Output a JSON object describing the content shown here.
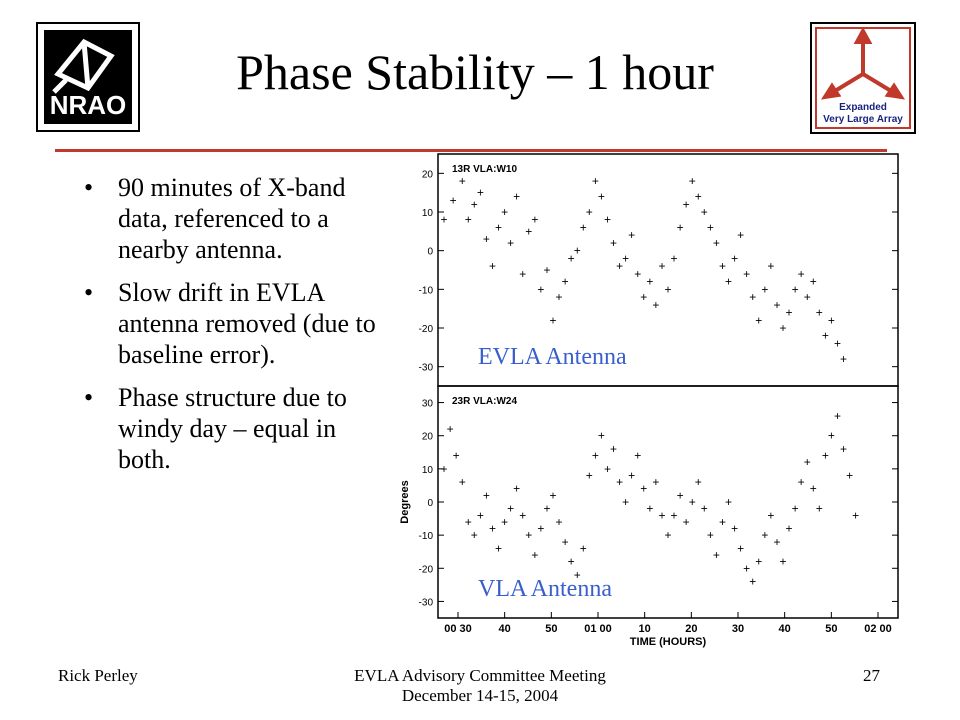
{
  "slide": {
    "title": "Phase Stability – 1 hour",
    "bullets": [
      "90 minutes of X-band data, referenced to a nearby antenna.",
      "Slow drift in EVLA antenna removed (due to baseline error).",
      "Phase structure due to windy day – equal in both."
    ],
    "footer_left": "Rick Perley",
    "footer_center_line1": "EVLA Advisory Committee Meeting",
    "footer_center_line2": "December 14-15, 2004",
    "page_number": "27",
    "accent_color": "#c0392b",
    "label_color": "#3a5fcd"
  },
  "logos": {
    "left_text": "NRAO",
    "right_line1": "Expanded",
    "right_line2": "Very Large Array"
  },
  "chart_data": [
    {
      "type": "scatter",
      "title": "",
      "panel_label": "13R VLA:W10",
      "annotation": "EVLA Antenna",
      "ylabel": "",
      "ylim": [
        -35,
        25
      ],
      "yticks": [
        20,
        10,
        0,
        -10,
        -20,
        -30
      ],
      "xlim": [
        0.48,
        2.0
      ],
      "marker": "+",
      "points": [
        [
          0.5,
          8
        ],
        [
          0.53,
          13
        ],
        [
          0.56,
          18
        ],
        [
          0.58,
          8
        ],
        [
          0.6,
          12
        ],
        [
          0.62,
          15
        ],
        [
          0.64,
          3
        ],
        [
          0.66,
          -4
        ],
        [
          0.68,
          6
        ],
        [
          0.7,
          10
        ],
        [
          0.72,
          2
        ],
        [
          0.74,
          14
        ],
        [
          0.76,
          -6
        ],
        [
          0.78,
          5
        ],
        [
          0.8,
          8
        ],
        [
          0.82,
          -10
        ],
        [
          0.84,
          -5
        ],
        [
          0.86,
          -18
        ],
        [
          0.88,
          -12
        ],
        [
          0.9,
          -8
        ],
        [
          0.92,
          -2
        ],
        [
          0.94,
          0
        ],
        [
          0.96,
          6
        ],
        [
          0.98,
          10
        ],
        [
          1.0,
          18
        ],
        [
          1.02,
          14
        ],
        [
          1.04,
          8
        ],
        [
          1.06,
          2
        ],
        [
          1.08,
          -4
        ],
        [
          1.1,
          -2
        ],
        [
          1.12,
          4
        ],
        [
          1.14,
          -6
        ],
        [
          1.16,
          -12
        ],
        [
          1.18,
          -8
        ],
        [
          1.2,
          -14
        ],
        [
          1.22,
          -4
        ],
        [
          1.24,
          -10
        ],
        [
          1.26,
          -2
        ],
        [
          1.28,
          6
        ],
        [
          1.3,
          12
        ],
        [
          1.32,
          18
        ],
        [
          1.34,
          14
        ],
        [
          1.36,
          10
        ],
        [
          1.38,
          6
        ],
        [
          1.4,
          2
        ],
        [
          1.42,
          -4
        ],
        [
          1.44,
          -8
        ],
        [
          1.46,
          -2
        ],
        [
          1.48,
          4
        ],
        [
          1.5,
          -6
        ],
        [
          1.52,
          -12
        ],
        [
          1.54,
          -18
        ],
        [
          1.56,
          -10
        ],
        [
          1.58,
          -4
        ],
        [
          1.6,
          -14
        ],
        [
          1.62,
          -20
        ],
        [
          1.64,
          -16
        ],
        [
          1.66,
          -10
        ],
        [
          1.68,
          -6
        ],
        [
          1.7,
          -12
        ],
        [
          1.72,
          -8
        ],
        [
          1.74,
          -16
        ],
        [
          1.76,
          -22
        ],
        [
          1.78,
          -18
        ],
        [
          1.8,
          -24
        ],
        [
          1.82,
          -28
        ]
      ]
    },
    {
      "type": "scatter",
      "title": "",
      "panel_label": "23R VLA:W24",
      "annotation": "VLA Antenna",
      "ylabel": "Degrees",
      "xlabel": "TIME (HOURS)",
      "ylim": [
        -35,
        35
      ],
      "yticks": [
        30,
        20,
        10,
        0,
        -10,
        -20,
        -30
      ],
      "xlim": [
        0.48,
        2.0
      ],
      "xticks": [
        "00 30",
        "40",
        "50",
        "01 00",
        "10",
        "20",
        "30",
        "40",
        "50",
        "02 00"
      ],
      "marker": "+",
      "points": [
        [
          0.5,
          10
        ],
        [
          0.52,
          22
        ],
        [
          0.54,
          14
        ],
        [
          0.56,
          6
        ],
        [
          0.58,
          -6
        ],
        [
          0.6,
          -10
        ],
        [
          0.62,
          -4
        ],
        [
          0.64,
          2
        ],
        [
          0.66,
          -8
        ],
        [
          0.68,
          -14
        ],
        [
          0.7,
          -6
        ],
        [
          0.72,
          -2
        ],
        [
          0.74,
          4
        ],
        [
          0.76,
          -4
        ],
        [
          0.78,
          -10
        ],
        [
          0.8,
          -16
        ],
        [
          0.82,
          -8
        ],
        [
          0.84,
          -2
        ],
        [
          0.86,
          2
        ],
        [
          0.88,
          -6
        ],
        [
          0.9,
          -12
        ],
        [
          0.92,
          -18
        ],
        [
          0.94,
          -22
        ],
        [
          0.96,
          -14
        ],
        [
          0.98,
          8
        ],
        [
          1.0,
          14
        ],
        [
          1.02,
          20
        ],
        [
          1.04,
          10
        ],
        [
          1.06,
          16
        ],
        [
          1.08,
          6
        ],
        [
          1.1,
          0
        ],
        [
          1.12,
          8
        ],
        [
          1.14,
          14
        ],
        [
          1.16,
          4
        ],
        [
          1.18,
          -2
        ],
        [
          1.2,
          6
        ],
        [
          1.22,
          -4
        ],
        [
          1.24,
          -10
        ],
        [
          1.26,
          -4
        ],
        [
          1.28,
          2
        ],
        [
          1.3,
          -6
        ],
        [
          1.32,
          0
        ],
        [
          1.34,
          6
        ],
        [
          1.36,
          -2
        ],
        [
          1.38,
          -10
        ],
        [
          1.4,
          -16
        ],
        [
          1.42,
          -6
        ],
        [
          1.44,
          0
        ],
        [
          1.46,
          -8
        ],
        [
          1.48,
          -14
        ],
        [
          1.5,
          -20
        ],
        [
          1.52,
          -24
        ],
        [
          1.54,
          -18
        ],
        [
          1.56,
          -10
        ],
        [
          1.58,
          -4
        ],
        [
          1.6,
          -12
        ],
        [
          1.62,
          -18
        ],
        [
          1.64,
          -8
        ],
        [
          1.66,
          -2
        ],
        [
          1.68,
          6
        ],
        [
          1.7,
          12
        ],
        [
          1.72,
          4
        ],
        [
          1.74,
          -2
        ],
        [
          1.76,
          14
        ],
        [
          1.78,
          20
        ],
        [
          1.8,
          26
        ],
        [
          1.82,
          16
        ],
        [
          1.84,
          8
        ],
        [
          1.86,
          -4
        ]
      ]
    }
  ]
}
